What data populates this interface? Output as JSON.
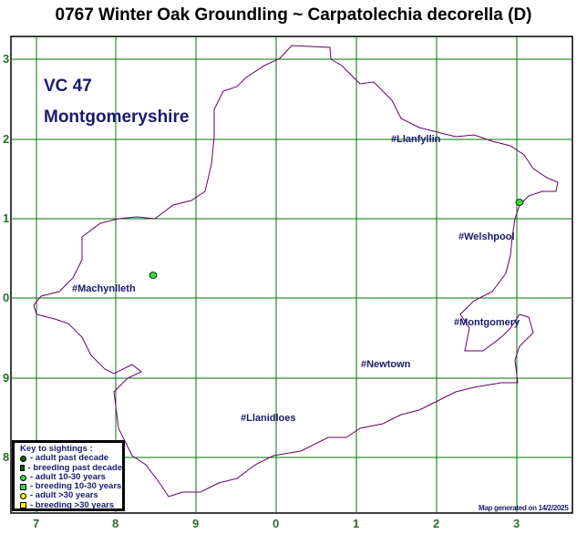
{
  "title": "0767 Winter Oak Groundling ~ Carpatolechia decorella (D)",
  "vice_county": {
    "code": "VC 47",
    "name": "Montgomeryshire"
  },
  "grid": {
    "y_labels": [
      "3",
      "2",
      "1",
      "0",
      "9",
      "8"
    ],
    "x_labels": [
      "7",
      "8",
      "9",
      "0",
      "1",
      "2",
      "3"
    ],
    "color": "#007700"
  },
  "boundary_color": "#660066",
  "towns": [
    "#Llanfyllin",
    "#Welshpool",
    "#Machynlleth",
    "#Montgomery",
    "#Newtown",
    "#Llanidloes"
  ],
  "sightings": [
    {
      "category": "adult 10-30 years",
      "color": "#33dd33"
    },
    {
      "category": "adult 10-30 years",
      "color": "#33dd33"
    }
  ],
  "key": {
    "title": "Key to sightings :",
    "items": [
      {
        "label": "- adult past decade",
        "shape": "circle",
        "color": "#006600"
      },
      {
        "label": "- breeding past decade",
        "shape": "square",
        "color": "#006600"
      },
      {
        "label": "- adult 10-30 years",
        "shape": "circle",
        "color": "#33dd33"
      },
      {
        "label": "- breeding 10-30 years",
        "shape": "square",
        "color": "#33dd33"
      },
      {
        "label": "- adult >30 years",
        "shape": "circle",
        "color": "#ffee00"
      },
      {
        "label": "- breeding >30 years",
        "shape": "square",
        "color": "#ffee00"
      }
    ]
  },
  "footer": "Map generated on 14/2/2025"
}
